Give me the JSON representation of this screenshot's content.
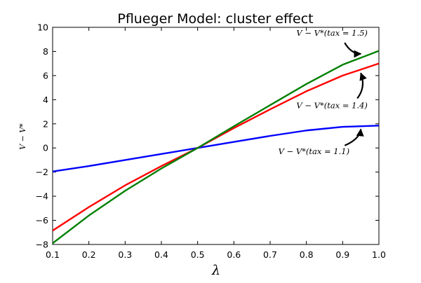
{
  "chart_data": {
    "type": "line",
    "title": "Pflueger Model: cluster effect",
    "xlabel": "λ",
    "ylabel": "V − V*",
    "xlim": [
      0.1,
      1.0
    ],
    "ylim": [
      -8,
      10
    ],
    "xticks": [
      0.1,
      0.2,
      0.3,
      0.4,
      0.5,
      0.6,
      0.7,
      0.8,
      0.9,
      1.0
    ],
    "xtick_labels": [
      "0.1",
      "0.2",
      "0.3",
      "0.4",
      "0.5",
      "0.6",
      "0.7",
      "0.8",
      "0.9",
      "1.0"
    ],
    "yticks": [
      -8,
      -6,
      -4,
      -2,
      0,
      2,
      4,
      6,
      8,
      10
    ],
    "ytick_labels": [
      "−8",
      "−6",
      "−4",
      "−2",
      "0",
      "2",
      "4",
      "6",
      "8",
      "10"
    ],
    "grid": false,
    "x": [
      0.1,
      0.2,
      0.3,
      0.4,
      0.5,
      0.6,
      0.7,
      0.8,
      0.9,
      1.0
    ],
    "series": [
      {
        "color": "#0000ff",
        "values": [
          -1.95,
          -1.5,
          -1.0,
          -0.5,
          0.0,
          0.5,
          1.0,
          1.45,
          1.75,
          1.85
        ]
      },
      {
        "color": "#ff0000",
        "values": [
          -6.85,
          -4.9,
          -3.1,
          -1.5,
          0.0,
          1.65,
          3.2,
          4.7,
          6.0,
          7.0
        ]
      },
      {
        "color": "#008000",
        "values": [
          -7.9,
          -5.6,
          -3.55,
          -1.7,
          0.0,
          1.8,
          3.55,
          5.3,
          6.9,
          8.05
        ]
      }
    ],
    "annotations": [
      {
        "text": "V − V*(tax = 1.5)",
        "point": [
          0.95,
          7.8
        ],
        "text_pos": [
          0.77,
          9.3
        ]
      },
      {
        "text": "V − V*(tax = 1.4)",
        "point": [
          0.95,
          6.2
        ],
        "text_pos": [
          0.77,
          3.3
        ]
      },
      {
        "text": "V − V*(tax = 1.1)",
        "point": [
          0.95,
          1.55
        ],
        "text_pos": [
          0.72,
          -0.5
        ]
      }
    ]
  }
}
